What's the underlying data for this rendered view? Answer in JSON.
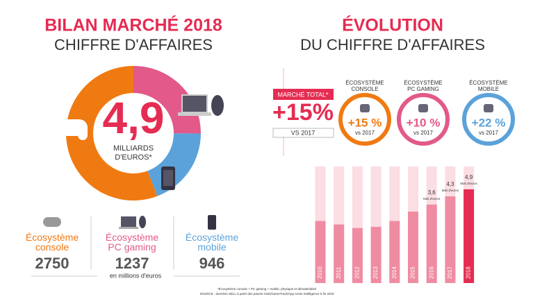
{
  "left_header": {
    "title": "BILAN MARCHÉ 2018",
    "subtitle": "CHIFFRE D'AFFAIRES"
  },
  "right_header": {
    "title": "ÉVOLUTION",
    "subtitle": "DU CHIFFRE D'AFFAIRES"
  },
  "chart_data": [
    {
      "type": "pie",
      "center_value": "4,9",
      "center_label": [
        "MILLIARDS",
        "D'EUROS*"
      ],
      "categories": [
        "Écosystème console",
        "Écosystème PC gaming",
        "Écosystème mobile"
      ],
      "values": [
        2750,
        1237,
        946
      ],
      "colors": [
        "#f07a12",
        "#e2598a",
        "#5ba2da"
      ],
      "unit_note": "en millions d'euros"
    },
    {
      "type": "bar",
      "categories": [
        "2010",
        "2011",
        "2012",
        "2013",
        "2014",
        "2015",
        "2016",
        "2017",
        "2018"
      ],
      "values": [
        2.2,
        1.9,
        1.6,
        1.7,
        2.2,
        3.0,
        3.6,
        4.3,
        4.9
      ],
      "value_labels": [
        null,
        null,
        null,
        null,
        null,
        null,
        "3,6",
        "4,3",
        "4,9"
      ],
      "value_label_unit": "Mds d'euros",
      "colors": [
        "#ef8ca2",
        "#ef8ca2",
        "#ef8ca2",
        "#ef8ca2",
        "#ef8ca2",
        "#ef8ca2",
        "#ef8ca2",
        "#ef8ca2",
        "#e52c52"
      ],
      "background_color": "#fbdde4",
      "ylim": [
        -3.1,
        6.85
      ]
    }
  ],
  "growth": {
    "total": {
      "label": "MARCHÉ TOTAL*",
      "value": "+15%",
      "note": "VS 2017"
    },
    "segments": [
      {
        "title": [
          "ÉCOSYSTÈME",
          "CONSOLE"
        ],
        "value": "+15 %",
        "note": "vs 2017",
        "color": "#f07a12"
      },
      {
        "title": [
          "ÉCOSYSTÈME",
          "PC GAMING"
        ],
        "value": "+10 %",
        "note": "vs 2017",
        "color": "#e2598a"
      },
      {
        "title": [
          "ÉCOSYSTÈME",
          "MOBILE"
        ],
        "value": "+22 %",
        "note": "vs 2017",
        "color": "#5ba2da"
      }
    ]
  },
  "footnotes": [
    "*Écosystème console + PC gaming + mobile, physique et dématérialisé",
    "SOURCE : données SELL à partir des panels GSD/GameTrack/App Annie Intelligence à fin 2018"
  ]
}
